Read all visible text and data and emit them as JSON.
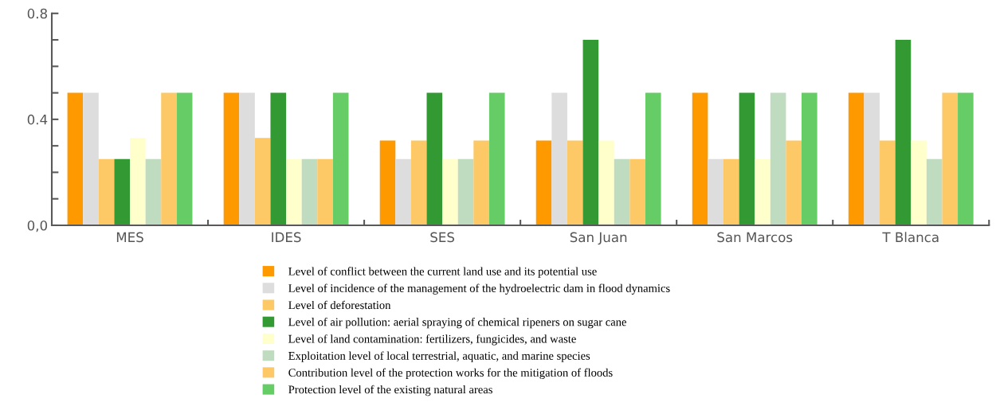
{
  "chart_data": {
    "type": "bar",
    "categories": [
      "MES",
      "IDES",
      "SES",
      "San Juan",
      "San Marcos",
      "T Blanca"
    ],
    "series": [
      {
        "name": "Level of conflict between the current land use and its potential use",
        "color": "#ff9900",
        "values": [
          0.5,
          0.5,
          0.32,
          0.32,
          0.5,
          0.5
        ]
      },
      {
        "name": "Level of incidence of the management of the hydroelectric dam in flood dynamics",
        "color": "#dddddd",
        "values": [
          0.5,
          0.5,
          0.25,
          0.5,
          0.25,
          0.5
        ]
      },
      {
        "name": "Level of deforestation",
        "color": "#fcc966",
        "values": [
          0.25,
          0.33,
          0.32,
          0.32,
          0.25,
          0.32
        ]
      },
      {
        "name": "Level of air pollution: aerial spraying of chemical ripeners on sugar cane",
        "color": "#339933",
        "values": [
          0.25,
          0.5,
          0.5,
          0.7,
          0.5,
          0.7
        ]
      },
      {
        "name": "Level of land contamination: fertilizers, fungicides, and waste",
        "color": "#ffffcc",
        "values": [
          0.33,
          0.25,
          0.25,
          0.32,
          0.25,
          0.32
        ]
      },
      {
        "name": "Exploitation level of local terrestrial, aquatic, and marine species",
        "color": "#c0dcc0",
        "values": [
          0.25,
          0.25,
          0.25,
          0.25,
          0.5,
          0.25
        ]
      },
      {
        "name": "Contribution level of the protection works for the mitigation of floods",
        "color": "#fcc966",
        "values": [
          0.5,
          0.25,
          0.32,
          0.25,
          0.32,
          0.5
        ]
      },
      {
        "name": "Protection level of the existing natural areas",
        "color": "#66cc66",
        "values": [
          0.5,
          0.5,
          0.5,
          0.5,
          0.5,
          0.5
        ]
      }
    ],
    "ylim": [
      0,
      0.8
    ],
    "yticks": [
      {
        "value": 0,
        "label": "0,0"
      },
      {
        "value": 0.1,
        "label": null
      },
      {
        "value": 0.2,
        "label": null
      },
      {
        "value": 0.3,
        "label": null
      },
      {
        "value": 0.4,
        "label": "0.4"
      },
      {
        "value": 0.5,
        "label": null
      },
      {
        "value": 0.6,
        "label": null
      },
      {
        "value": 0.7,
        "label": null
      },
      {
        "value": 0.8,
        "label": "0.8"
      }
    ],
    "grid": false,
    "legend": "bottom"
  }
}
